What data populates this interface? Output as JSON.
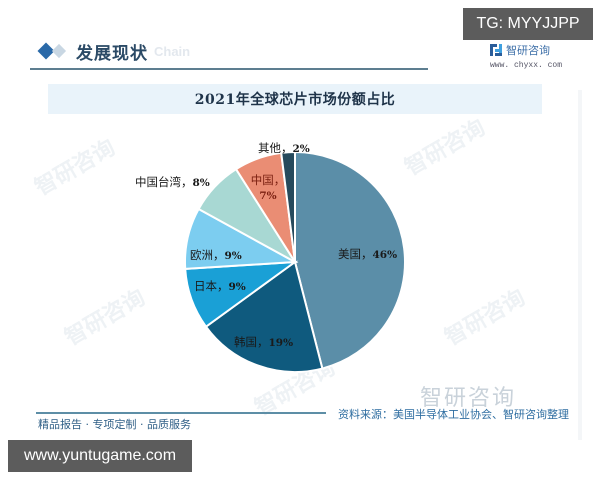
{
  "overlay": {
    "tg_badge": "TG: MYYJJPP",
    "url_badge": "www.yuntugame.com"
  },
  "header": {
    "section_title": "发展现状",
    "ghost_text": "Chain",
    "brand_name": "智研咨询",
    "brand_url": "www. chyxx. com"
  },
  "chart_title": "2021年全球芯片市场份额占比",
  "labels": {
    "usa": "美国，",
    "usa_val": "46%",
    "korea": "韩国，",
    "korea_val": "19%",
    "japan": "日本，",
    "japan_val": "9%",
    "europe": "欧洲，",
    "europe_val": "9%",
    "taiwan": "中国台湾，",
    "taiwan_val": "8%",
    "china": "中国，",
    "china_val": "7%",
    "others": "其他，",
    "others_val": "2%"
  },
  "footer": {
    "left": "精品报告 · 专项定制 · 品质服务",
    "source": "资料来源：美国半导体工业协会、智研咨询整理",
    "watermark": "智研咨询"
  },
  "chart_data": {
    "type": "pie",
    "title": "2021年全球芯片市场份额占比",
    "categories": [
      "美国",
      "韩国",
      "日本",
      "欧洲",
      "中国台湾",
      "中国",
      "其他"
    ],
    "values": [
      46,
      19,
      9,
      9,
      8,
      7,
      2
    ],
    "unit": "%",
    "colors": [
      "#5b8ea8",
      "#0f5a7e",
      "#1aa0d6",
      "#7ccdf0",
      "#a8d8d3",
      "#ea8d74",
      "#264a5c"
    ],
    "start_angle": "12 o'clock",
    "direction": "clockwise",
    "legend": "none (data labels on slices)",
    "source": "美国半导体工业协会、智研咨询整理"
  }
}
